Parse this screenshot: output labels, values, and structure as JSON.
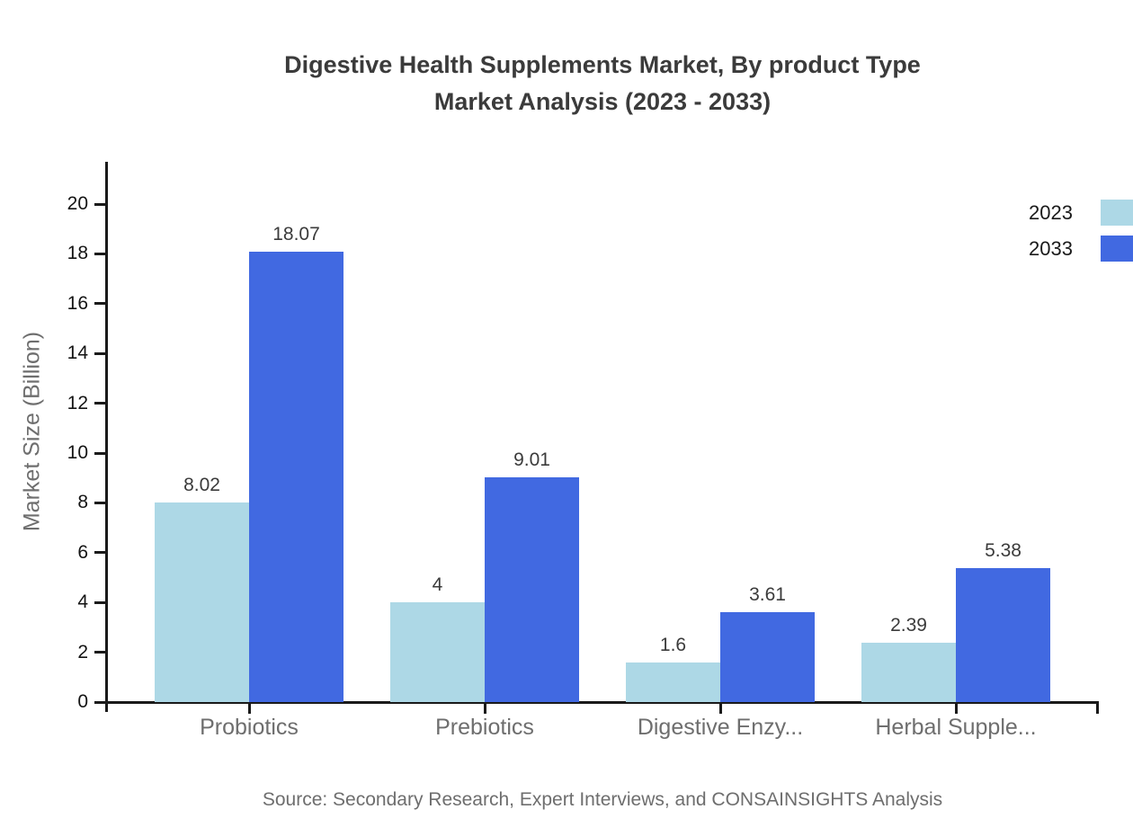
{
  "title": {
    "line1": "Digestive Health Supplements Market, By product Type",
    "line2": "Market Analysis (2023 - 2033)"
  },
  "y_axis": {
    "label": "Market Size (Billion)",
    "tick_labels": [
      "0",
      "2",
      "4",
      "6",
      "8",
      "10",
      "12",
      "14",
      "16",
      "18",
      "20"
    ]
  },
  "legend": {
    "items": [
      {
        "label": "2023",
        "color": "#ADD8E6"
      },
      {
        "label": "2033",
        "color": "#4169E1"
      }
    ]
  },
  "chart_data": {
    "type": "bar",
    "title": "Digestive Health Supplements Market, By product Type Market Analysis (2023 - 2033)",
    "categories": [
      "Probiotics",
      "Prebiotics",
      "Digestive Enzy...",
      "Herbal Supple..."
    ],
    "series": [
      {
        "name": "2023",
        "color": "#ADD8E6",
        "values": [
          8.02,
          4,
          1.6,
          2.39
        ],
        "value_labels": [
          "8.02",
          "4",
          "1.6",
          "2.39"
        ]
      },
      {
        "name": "2033",
        "color": "#4169E1",
        "values": [
          18.07,
          9.01,
          3.61,
          5.38
        ],
        "value_labels": [
          "18.07",
          "9.01",
          "3.61",
          "5.38"
        ]
      }
    ],
    "xlabel": "",
    "ylabel": "Market Size (Billion)",
    "ylim": [
      0,
      20
    ],
    "ytick_step": 2,
    "grid": false,
    "legend_position": "top-right",
    "bar_value_labels_shown": true
  },
  "source": "Source: Secondary Research, Expert Interviews, and CONSAINSIGHTS Analysis"
}
